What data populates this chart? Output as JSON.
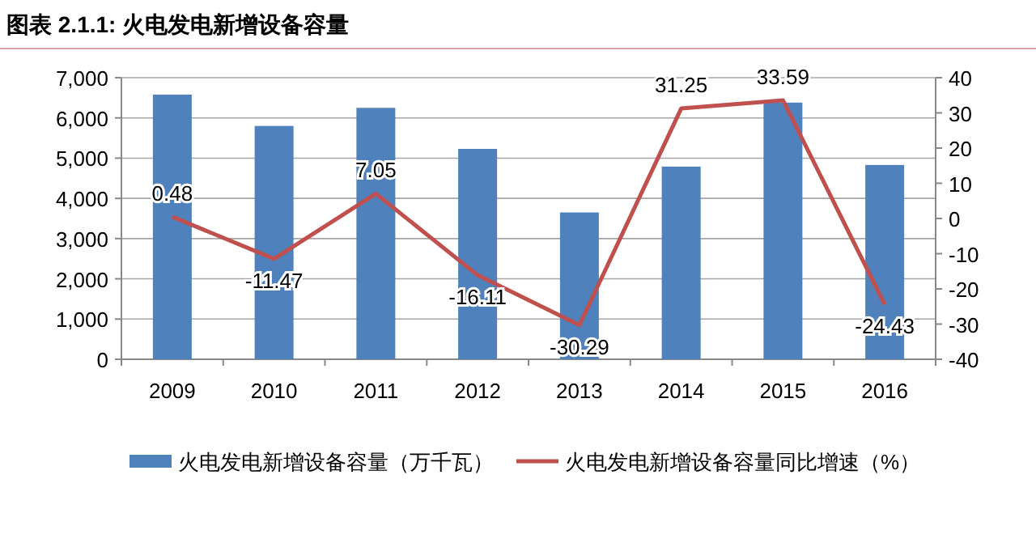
{
  "chart_data": {
    "type": "bar",
    "title": "图表 2.1.1: 火电发电新增设备容量",
    "categories": [
      "2009",
      "2010",
      "2011",
      "2012",
      "2013",
      "2014",
      "2015",
      "2016"
    ],
    "series": [
      {
        "name": "火电发电新增设备容量（万千瓦）",
        "color": "#4f81bd",
        "values": [
          6580,
          5800,
          6250,
          5230,
          3650,
          4790,
          6380,
          4830
        ]
      },
      {
        "name": "火电发电新增设备容量同比增速（%）",
        "type": "line",
        "axis": "y2",
        "color": "#c0504d",
        "values": [
          0.48,
          -11.47,
          7.05,
          -16.11,
          -30.29,
          31.25,
          33.59,
          -24.43
        ],
        "value_labels": [
          "0.48",
          "-11.47",
          "7.05",
          "-16.11",
          "-30.29",
          "31.25",
          "33.59",
          "-24.43"
        ]
      }
    ],
    "ylim": [
      0,
      7000
    ],
    "yticks": [
      {
        "value": 0,
        "label": "0"
      },
      {
        "value": 1000,
        "label": "1,000"
      },
      {
        "value": 2000,
        "label": "2,000"
      },
      {
        "value": 3000,
        "label": "3,000"
      },
      {
        "value": 4000,
        "label": "4,000"
      },
      {
        "value": 5000,
        "label": "5,000"
      },
      {
        "value": 6000,
        "label": "6,000"
      },
      {
        "value": 7000,
        "label": "7,000"
      }
    ],
    "y2lim": [
      -40,
      40
    ],
    "y2ticks": [
      -40,
      -30,
      -20,
      -10,
      0,
      10,
      20,
      30,
      40
    ],
    "grid": "y",
    "legend": "bottom"
  }
}
